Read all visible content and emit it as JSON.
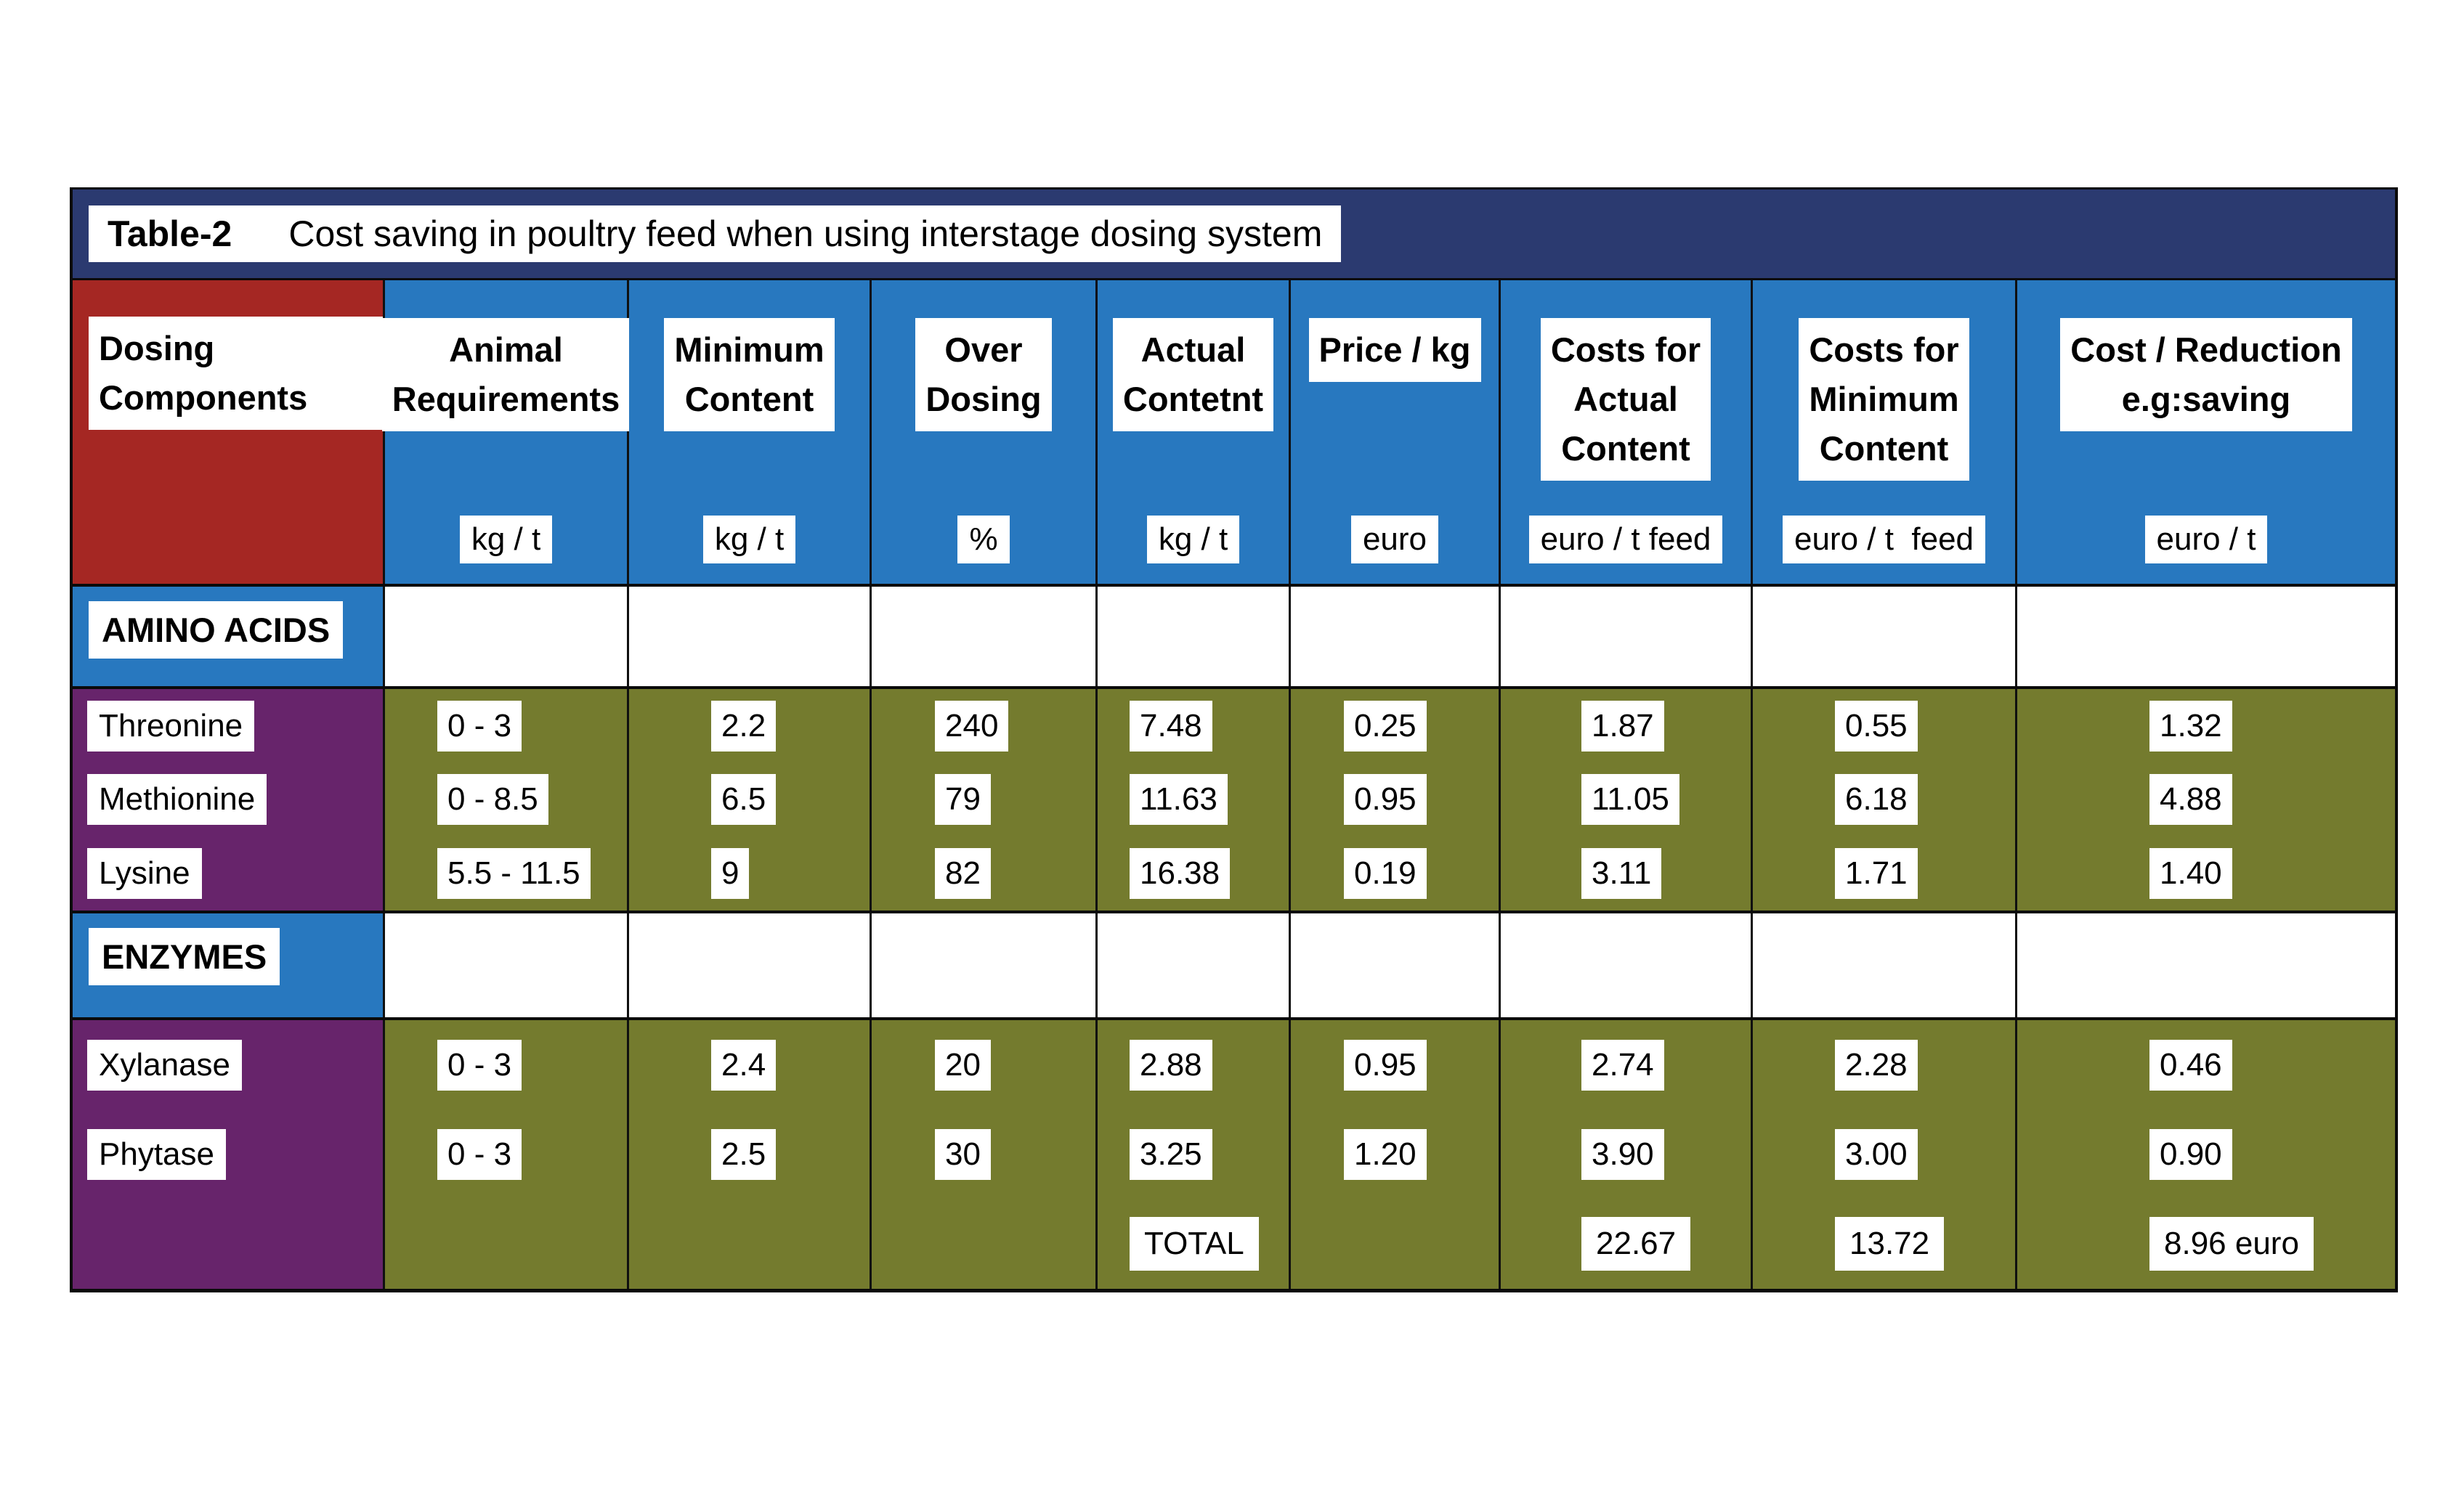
{
  "colors": {
    "navy_band": "#2b3a70",
    "header_blue": "#2878bf",
    "dosing_red": "#a52723",
    "label_purple": "#67246b",
    "data_olive": "#747b2e",
    "box_white": "#ffffff",
    "text_black": "#000000"
  },
  "title": {
    "label": "Table-2",
    "text": "Cost saving in poultry feed when using interstage dosing system"
  },
  "columns": [
    {
      "id": "dosing_components",
      "header": "Dosing\nComponents",
      "unit": ""
    },
    {
      "id": "animal_requirements",
      "header": "Animal\nRequirements",
      "unit": "kg / t"
    },
    {
      "id": "minimum_content",
      "header": "Minimum\nContent",
      "unit": "kg / t"
    },
    {
      "id": "over_dosing",
      "header": "Over\nDosing",
      "unit": "%"
    },
    {
      "id": "actual_content",
      "header": "Actual\nContetnt",
      "unit": "kg / t"
    },
    {
      "id": "price_per_kg",
      "header": "Price / kg",
      "unit": "euro"
    },
    {
      "id": "costs_actual_content",
      "header": "Costs for\nActual\nContent",
      "unit": "euro / t feed"
    },
    {
      "id": "costs_minimum_content",
      "header": "Costs for\nMinimum\nContent",
      "unit": "euro / t  feed"
    },
    {
      "id": "cost_reduction_saving",
      "header": "Cost / Reduction\ne.g:saving",
      "unit": "euro / t"
    }
  ],
  "sections": [
    {
      "name": "AMINO ACIDS",
      "rows": [
        {
          "label": "Threonine",
          "values": [
            "0 - 3",
            "2.2",
            "240",
            "7.48",
            "0.25",
            "1.87",
            "0.55",
            "1.32"
          ]
        },
        {
          "label": "Methionine",
          "values": [
            "0 - 8.5",
            "6.5",
            "79",
            "11.63",
            "0.95",
            "11.05",
            "6.18",
            "4.88"
          ]
        },
        {
          "label": "Lysine",
          "values": [
            "5.5 - 11.5",
            "9",
            "82",
            "16.38",
            "0.19",
            "3.11",
            "1.71",
            "1.40"
          ]
        }
      ]
    },
    {
      "name": "ENZYMES",
      "rows": [
        {
          "label": "Xylanase",
          "values": [
            "0 - 3",
            "2.4",
            "20",
            "2.88",
            "0.95",
            "2.74",
            "2.28",
            "0.46"
          ]
        },
        {
          "label": "Phytase",
          "values": [
            "0 - 3",
            "2.5",
            "30",
            "3.25",
            "1.20",
            "3.90",
            "3.00",
            "0.90"
          ]
        }
      ],
      "total": {
        "label": "TOTAL",
        "costs_actual_content": "22.67",
        "costs_minimum_content": "13.72",
        "saving": "8.96 euro"
      }
    }
  ]
}
